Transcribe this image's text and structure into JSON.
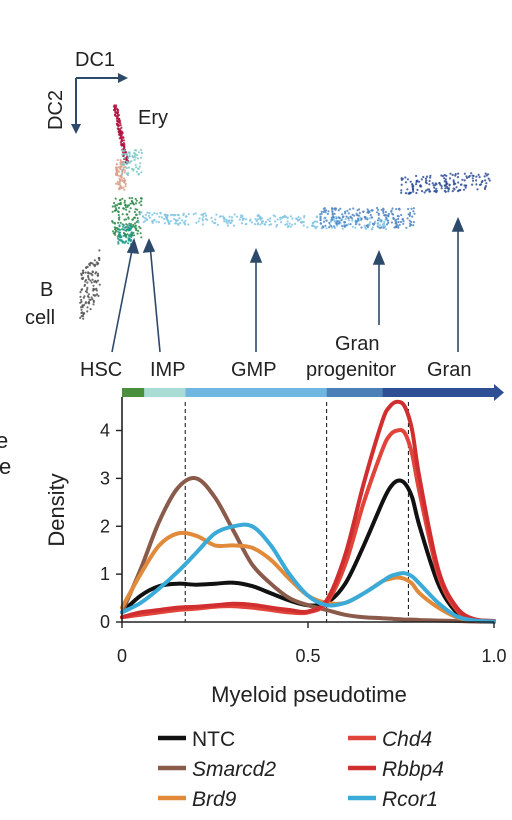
{
  "embedding": {
    "dc1_label": "DC1",
    "dc2_label": "DC2",
    "cluster_labels": {
      "ery": "Ery",
      "b_cell_1": "B",
      "b_cell_2": "cell",
      "hsc": "HSC",
      "imp": "IMP",
      "gmp": "GMP",
      "gran_progenitor_1": "Gran",
      "gran_progenitor_2": "progenitor",
      "gran": "Gran"
    }
  },
  "pseudotime_bar": {
    "segments": [
      {
        "name": "HSC",
        "start": 0.0,
        "end": 0.06,
        "color": "#4a8f3c"
      },
      {
        "name": "IMP",
        "start": 0.06,
        "end": 0.17,
        "color": "#a8dcd4"
      },
      {
        "name": "GMP",
        "start": 0.17,
        "end": 0.55,
        "color": "#6fb7e0"
      },
      {
        "name": "Gran progenitor",
        "start": 0.55,
        "end": 0.7,
        "color": "#4b7fb8"
      },
      {
        "name": "Gran",
        "start": 0.7,
        "end": 1.0,
        "color": "#2f4f94"
      }
    ]
  },
  "cut_label": {
    "line1": "e",
    "line2": "ce"
  },
  "chart_data": {
    "type": "line",
    "xlabel": "Myeloid pseudotime",
    "ylabel": "Density",
    "xlim": [
      0,
      1
    ],
    "ylim": [
      0,
      4.7
    ],
    "xticks": [
      0,
      0.5,
      1.0
    ],
    "xtick_labels": [
      "0",
      "0.5",
      "1.0"
    ],
    "yticks": [
      0,
      1,
      2,
      3,
      4
    ],
    "ytick_labels": [
      "0",
      "1",
      "2",
      "3",
      "4"
    ],
    "reference_lines_x": [
      0.17,
      0.55,
      0.77
    ],
    "x": [
      0,
      0.05,
      0.1,
      0.15,
      0.2,
      0.25,
      0.3,
      0.35,
      0.4,
      0.45,
      0.5,
      0.55,
      0.6,
      0.65,
      0.7,
      0.72,
      0.74,
      0.76,
      0.78,
      0.8,
      0.85,
      0.9,
      0.95,
      1.0
    ],
    "series": [
      {
        "name": "NTC",
        "color": "#111111",
        "italic": false,
        "values": [
          0.2,
          0.55,
          0.75,
          0.8,
          0.78,
          0.8,
          0.82,
          0.75,
          0.6,
          0.45,
          0.35,
          0.4,
          0.8,
          1.6,
          2.5,
          2.8,
          2.95,
          2.9,
          2.6,
          2.0,
          0.8,
          0.2,
          0.05,
          0.02
        ]
      },
      {
        "name": "Smarcd2",
        "color": "#8a5a4a",
        "italic": true,
        "values": [
          0.2,
          1.1,
          2.1,
          2.8,
          3.0,
          2.6,
          1.9,
          1.2,
          0.8,
          0.5,
          0.35,
          0.25,
          0.15,
          0.1,
          0.08,
          0.07,
          0.06,
          0.05,
          0.05,
          0.04,
          0.03,
          0.02,
          0.01,
          0.0
        ]
      },
      {
        "name": "Brd9",
        "color": "#e08a3a",
        "italic": true,
        "values": [
          0.3,
          1.0,
          1.6,
          1.85,
          1.8,
          1.6,
          1.6,
          1.55,
          1.3,
          0.9,
          0.55,
          0.4,
          0.4,
          0.6,
          0.85,
          0.9,
          0.93,
          0.9,
          0.8,
          0.6,
          0.3,
          0.1,
          0.03,
          0.01
        ]
      },
      {
        "name": "Chd4",
        "color": "#e0443a",
        "italic": true,
        "values": [
          0.1,
          0.15,
          0.2,
          0.25,
          0.28,
          0.32,
          0.33,
          0.3,
          0.25,
          0.2,
          0.2,
          0.4,
          1.2,
          2.5,
          3.6,
          3.9,
          4.0,
          3.95,
          3.5,
          2.7,
          1.0,
          0.25,
          0.05,
          0.02
        ]
      },
      {
        "name": "Rbbp4",
        "color": "#d12f2f",
        "italic": true,
        "values": [
          0.1,
          0.2,
          0.25,
          0.3,
          0.32,
          0.35,
          0.38,
          0.36,
          0.3,
          0.25,
          0.22,
          0.45,
          1.4,
          2.9,
          4.2,
          4.5,
          4.6,
          4.5,
          4.0,
          3.0,
          1.1,
          0.3,
          0.05,
          0.02
        ]
      },
      {
        "name": "Rcor1",
        "color": "#3aaad8",
        "italic": true,
        "values": [
          0.2,
          0.4,
          0.7,
          1.05,
          1.45,
          1.85,
          2.0,
          2.0,
          1.6,
          1.0,
          0.55,
          0.35,
          0.4,
          0.6,
          0.85,
          0.95,
          1.0,
          1.02,
          0.95,
          0.8,
          0.4,
          0.12,
          0.03,
          0.01
        ]
      }
    ],
    "legend_order": [
      "NTC",
      "Chd4",
      "Smarcd2",
      "Rbbp4",
      "Brd9",
      "Rcor1"
    ],
    "legend_placement": "bottom"
  }
}
